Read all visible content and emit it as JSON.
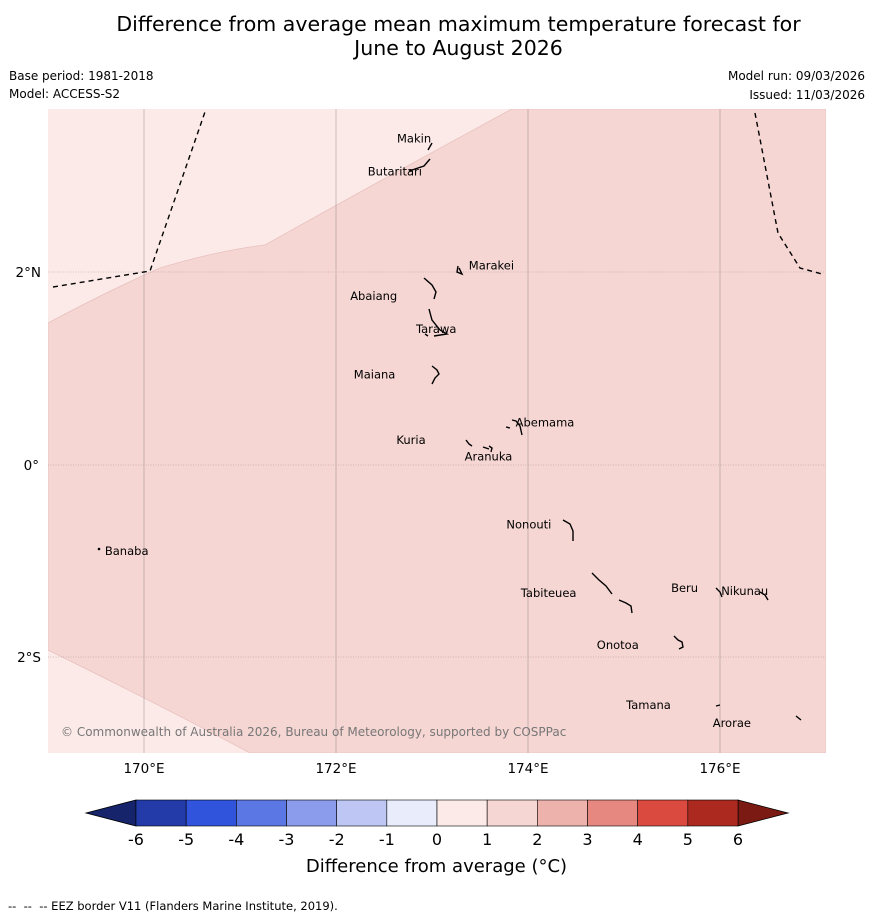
{
  "title_line1": "Difference from average mean maximum temperature forecast for",
  "title_line2": "June to August 2026",
  "base_period": "Base period: 1981-2018",
  "model": "Model: ACCESS-S2",
  "model_run": "Model run: 09/03/2026",
  "issued": "Issued: 11/03/2026",
  "lon_labels": [
    "170°E",
    "172°E",
    "174°E",
    "176°E"
  ],
  "lat_labels": [
    "2°N",
    "0°",
    "2°S"
  ],
  "places": [
    {
      "name": "Makin",
      "lon": 173.0,
      "lat": 3.35
    },
    {
      "name": "Butaritari",
      "lon": 172.8,
      "lat": 3.05
    },
    {
      "name": "Marakei",
      "lon": 173.3,
      "lat": 1.98
    },
    {
      "name": "Abaiang",
      "lon": 172.95,
      "lat": 1.83
    },
    {
      "name": "Tarawa",
      "lon": 173.0,
      "lat": 1.4
    },
    {
      "name": "Maiana",
      "lon": 173.05,
      "lat": 0.93
    },
    {
      "name": "Abemama",
      "lon": 173.85,
      "lat": 0.42
    },
    {
      "name": "Kuria",
      "lon": 173.4,
      "lat": 0.23
    },
    {
      "name": "Aranuka",
      "lon": 173.6,
      "lat": 0.17
    },
    {
      "name": "Nonouti",
      "lon": 174.4,
      "lat": -0.65
    },
    {
      "name": "Banaba",
      "lon": 169.53,
      "lat": -0.87
    },
    {
      "name": "Beru",
      "lon": 175.98,
      "lat": -1.33
    },
    {
      "name": "Tabiteuea",
      "lon": 174.8,
      "lat": -1.35
    },
    {
      "name": "Nikunau",
      "lon": 176.45,
      "lat": -1.35
    },
    {
      "name": "Onotoa",
      "lon": 175.55,
      "lat": -1.85
    },
    {
      "name": "Tamana",
      "lon": 175.98,
      "lat": -2.5
    },
    {
      "name": "Arorae",
      "lon": 176.82,
      "lat": -2.65
    }
  ],
  "copyright": "© Commonwealth of Australia 2026, Bureau of Meteorology, supported by COSPPac",
  "colorbar": {
    "ticks": [
      "-6",
      "-5",
      "-4",
      "-3",
      "-2",
      "-1",
      "0",
      "1",
      "2",
      "3",
      "4",
      "5",
      "6"
    ],
    "colors": [
      "#233ba8",
      "#3154dd",
      "#5b77e3",
      "#8a9ceb",
      "#bec7f3",
      "#e8ecfb",
      "#fceae8",
      "#f5d6d3",
      "#eeb2ad",
      "#e68880",
      "#db4a3f",
      "#ac2920"
    ],
    "under_color": "#15246b",
    "over_color": "#7a1a12",
    "label": "Difference from average (°C)"
  },
  "map_fills": {
    "diff_0_1": "#fceae8",
    "diff_1_2": "#f5d6d3"
  },
  "eez_note": "--  --  -- EEZ border V11 (Flanders Marine Institute, 2019)."
}
